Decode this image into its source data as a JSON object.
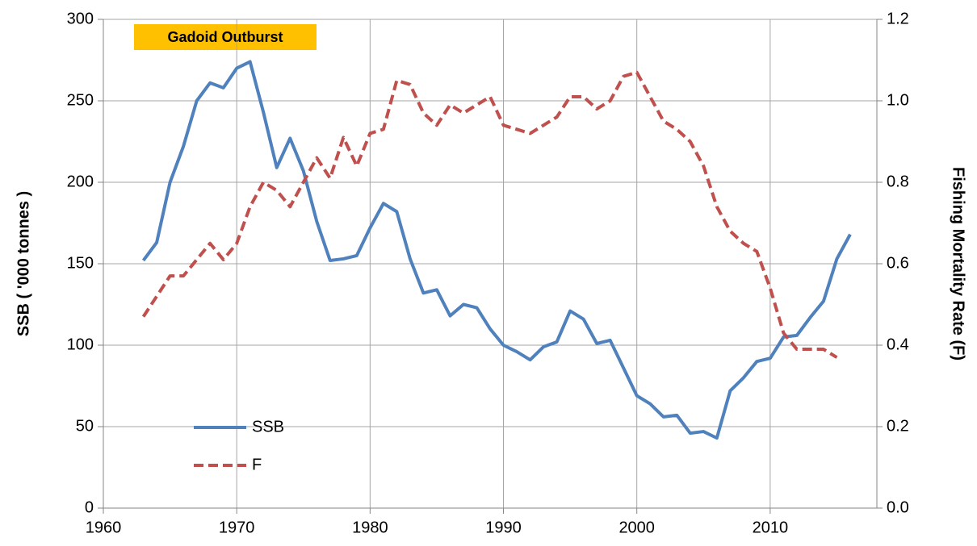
{
  "chart_data": {
    "type": "line",
    "annotation": "Gadoid Outburst",
    "ylabel": "SSB ( '000 tonnes )",
    "y2label": "Fishing Mortality Rate (F)",
    "x": [
      1963,
      1964,
      1965,
      1966,
      1967,
      1968,
      1969,
      1970,
      1971,
      1972,
      1973,
      1974,
      1975,
      1976,
      1977,
      1978,
      1979,
      1980,
      1981,
      1982,
      1983,
      1984,
      1985,
      1986,
      1987,
      1988,
      1989,
      1990,
      1991,
      1992,
      1993,
      1994,
      1995,
      1996,
      1997,
      1998,
      1999,
      2000,
      2001,
      2002,
      2003,
      2004,
      2005,
      2006,
      2007,
      2008,
      2009,
      2010,
      2011,
      2012,
      2013,
      2014,
      2015,
      2016
    ],
    "series": [
      {
        "name": "SSB",
        "color": "#4f81bd",
        "line_style": "solid",
        "values": [
          152,
          163,
          200,
          222,
          250,
          261,
          258,
          270,
          274,
          243,
          209,
          227,
          207,
          176,
          152,
          153,
          155,
          172,
          187,
          182,
          153,
          132,
          134,
          118,
          125,
          123,
          110,
          100,
          96,
          91,
          99,
          102,
          121,
          116,
          101,
          103,
          86,
          69,
          64,
          56,
          57,
          46,
          47,
          43,
          72,
          80,
          90,
          92,
          105,
          106,
          117,
          127,
          153,
          168
        ]
      },
      {
        "name": "F",
        "color": "#c0504d",
        "line_style": "dashed",
        "axis": "y2",
        "values": [
          0.47,
          0.52,
          0.57,
          0.57,
          0.61,
          0.65,
          0.61,
          0.65,
          0.74,
          0.8,
          0.78,
          0.74,
          0.8,
          0.86,
          0.81,
          0.91,
          0.84,
          0.92,
          0.93,
          1.05,
          1.04,
          0.97,
          0.94,
          0.99,
          0.97,
          0.99,
          1.01,
          0.94,
          0.93,
          0.92,
          0.94,
          0.96,
          1.01,
          1.01,
          0.98,
          1.0,
          1.06,
          1.07,
          1.01,
          0.95,
          0.93,
          0.9,
          0.84,
          0.74,
          0.68,
          0.65,
          0.63,
          0.54,
          0.43,
          0.39,
          0.39,
          0.39,
          0.37,
          null
        ]
      }
    ],
    "xlim": [
      1960,
      2018
    ],
    "xticks": [
      1960,
      1970,
      1980,
      1990,
      2000,
      2010
    ],
    "ylim": [
      0,
      300
    ],
    "yticks": [
      0,
      50,
      100,
      150,
      200,
      250,
      300
    ],
    "y2lim": [
      0,
      1.2
    ],
    "y2ticks": [
      {
        "value": 0,
        "label": "0.0"
      },
      0.2,
      0.4,
      0.6,
      0.8,
      {
        "value": 1,
        "label": "1.0"
      },
      1.2
    ],
    "grid": true,
    "legend": "lower left"
  }
}
